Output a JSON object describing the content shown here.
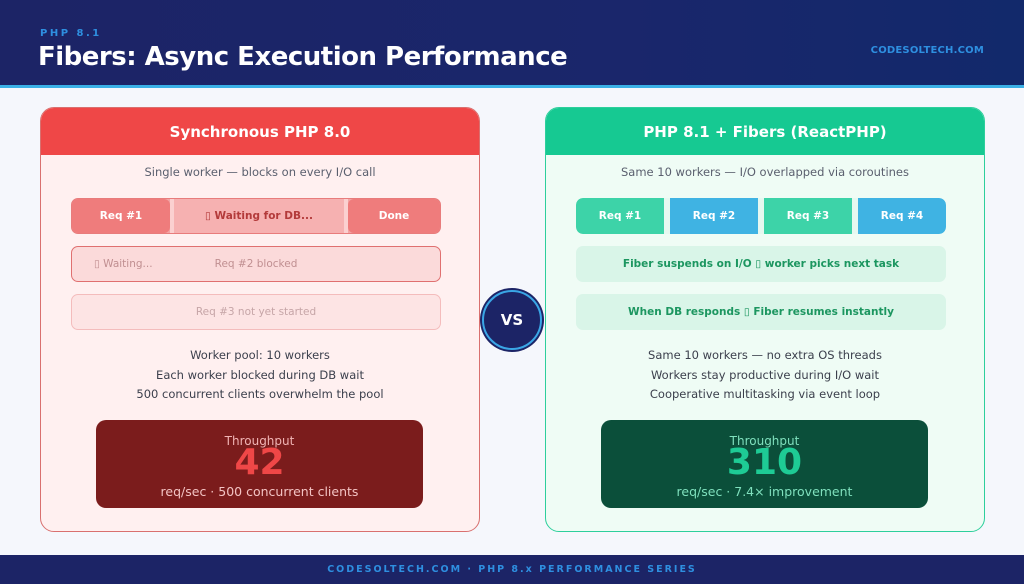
{
  "header": {
    "kicker": "PHP 8.1",
    "title": "Fibers: Async Execution Performance",
    "brand": "CODESOLTECH.COM"
  },
  "colors": {
    "navy": "#1c2466",
    "accent_blue": "#2e8fe0",
    "sync_red": "#ef4747",
    "fiber_green": "#16c992",
    "fiber_blue": "#3fb3e3"
  },
  "left": {
    "title": "Synchronous PHP 8.0",
    "subtitle": "Single worker — blocks on every I/O call",
    "lane1": {
      "req": "Req #1",
      "wait": "▯ Waiting for DB...",
      "done": "Done"
    },
    "lane2": {
      "waiting": "▯ Waiting...",
      "blocked": "Req #2 blocked"
    },
    "lane3": {
      "label": "Req #3 not yet started"
    },
    "bullets": [
      "Worker pool: 10 workers",
      "Each worker blocked during DB wait",
      "500 concurrent clients overwhelm the pool"
    ],
    "metric": {
      "label": "Throughput",
      "value": "42",
      "sub": "req/sec · 500 concurrent clients"
    }
  },
  "vs": "VS",
  "right": {
    "title": "PHP 8.1 + Fibers (ReactPHP)",
    "subtitle": "Same 10 workers — I/O overlapped via coroutines",
    "lane1": [
      "Req #1",
      "Req #2",
      "Req #3",
      "Req #4"
    ],
    "note1": "Fiber suspends on I/O ▯ worker picks next task",
    "note2": "When DB responds ▯ Fiber resumes instantly",
    "bullets": [
      "Same 10 workers — no extra OS threads",
      "Workers stay productive during I/O wait",
      "Cooperative multitasking via event loop"
    ],
    "metric": {
      "label": "Throughput",
      "value": "310",
      "sub": "req/sec · 7.4× improvement"
    }
  },
  "footer": {
    "text": "CODESOLTECH.COM · PHP 8.x PERFORMANCE SERIES"
  }
}
